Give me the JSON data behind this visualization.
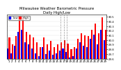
{
  "title": "Milwaukee Weather Barometric Pressure",
  "subtitle": "Daily High/Low",
  "days": [
    1,
    2,
    3,
    4,
    5,
    6,
    7,
    8,
    9,
    10,
    11,
    12,
    13,
    14,
    15,
    16,
    17,
    18,
    19,
    20,
    21,
    22,
    23,
    24,
    25,
    26,
    27,
    28,
    29
  ],
  "highs": [
    30.05,
    29.9,
    30.08,
    30.42,
    30.48,
    30.18,
    30.12,
    30.05,
    29.95,
    29.85,
    30.05,
    29.9,
    29.98,
    29.85,
    29.9,
    29.95,
    30.0,
    29.92,
    29.8,
    29.85,
    30.02,
    30.15,
    30.1,
    30.08,
    30.22,
    30.35,
    30.15,
    30.48,
    30.22
  ],
  "lows": [
    29.82,
    29.72,
    29.88,
    30.18,
    30.22,
    29.95,
    29.9,
    29.82,
    29.72,
    29.65,
    29.85,
    29.7,
    29.78,
    29.68,
    29.72,
    29.78,
    29.82,
    29.75,
    29.62,
    29.65,
    29.82,
    29.95,
    29.88,
    29.85,
    30.02,
    30.12,
    29.9,
    30.22,
    30.0
  ],
  "missing_days": [
    16,
    17,
    18
  ],
  "bar_width": 0.42,
  "high_color": "#ff0000",
  "low_color": "#0000ff",
  "bg_color": "#ffffff",
  "ylim_min": 29.6,
  "ylim_max": 30.55,
  "title_fontsize": 3.8,
  "tick_fontsize": 2.8,
  "ytick_values": [
    29.6,
    29.7,
    29.8,
    29.9,
    30.0,
    30.1,
    30.2,
    30.3,
    30.4,
    30.5
  ],
  "ytick_labels": [
    "29.6",
    "29.7",
    "29.8",
    "29.9",
    "30.0",
    "30.1",
    "30.2",
    "30.3",
    "30.4",
    "30.5"
  ]
}
